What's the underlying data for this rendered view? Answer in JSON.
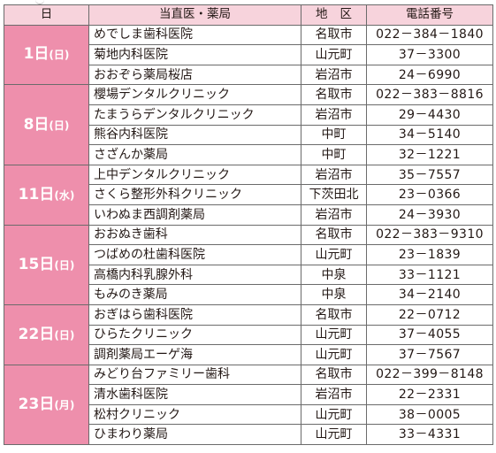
{
  "header": {
    "date": "日",
    "facility": "当直医・薬局",
    "area": "地区",
    "phone": "電話番号"
  },
  "groups": [
    {
      "day": "1日",
      "weekday": "(日)",
      "rows": [
        {
          "name": "めでしま歯科医院",
          "area": "名取市",
          "phone": "022－384－1840"
        },
        {
          "name": "菊地内科医院",
          "area": "山元町",
          "phone": "37－3300"
        },
        {
          "name": "おおぞら薬局桜店",
          "area": "岩沼市",
          "phone": "24－6990"
        }
      ]
    },
    {
      "day": "8日",
      "weekday": "(日)",
      "rows": [
        {
          "name": "櫻場デンタルクリニック",
          "area": "名取市",
          "phone": "022－383－8816"
        },
        {
          "name": "たまうらデンタルクリニック",
          "area": "岩沼市",
          "phone": "29－4430"
        },
        {
          "name": "熊谷内科医院",
          "area": "中町",
          "phone": "34－5140"
        },
        {
          "name": "さざんか薬局",
          "area": "中町",
          "phone": "32－1221"
        }
      ]
    },
    {
      "day": "11日",
      "weekday": "(水)",
      "rows": [
        {
          "name": "上中デンタルクリニック",
          "area": "岩沼市",
          "phone": "35－7557"
        },
        {
          "name": "さくら整形外科クリニック",
          "area": "下茨田北",
          "phone": "23－0366"
        },
        {
          "name": "いわぬま西調剤薬局",
          "area": "岩沼市",
          "phone": "24－3930"
        }
      ]
    },
    {
      "day": "15日",
      "weekday": "(日)",
      "rows": [
        {
          "name": "おおぬき歯科",
          "area": "名取市",
          "phone": "022－383－9310"
        },
        {
          "name": "つばめの杜歯科医院",
          "area": "山元町",
          "phone": "23－1839"
        },
        {
          "name": "高橋内科乳腺外科",
          "area": "中泉",
          "phone": "33－1121"
        },
        {
          "name": "もみのき薬局",
          "area": "中泉",
          "phone": "34－2140"
        }
      ]
    },
    {
      "day": "22日",
      "weekday": "(日)",
      "rows": [
        {
          "name": "おぎはら歯科医院",
          "area": "名取市",
          "phone": "22－0712"
        },
        {
          "name": "ひらたクリニック",
          "area": "山元町",
          "phone": "37－4055"
        },
        {
          "name": "調剤薬局エーゲ海",
          "area": "山元町",
          "phone": "37－7567"
        }
      ]
    },
    {
      "day": "23日",
      "weekday": "(月)",
      "rows": [
        {
          "name": "みどり台ファミリー歯科",
          "area": "名取市",
          "phone": "022－399－8148"
        },
        {
          "name": "清水歯科医院",
          "area": "岩沼市",
          "phone": "22－2331"
        },
        {
          "name": "松村クリニック",
          "area": "山元町",
          "phone": "38－0005"
        },
        {
          "name": "ひまわり薬局",
          "area": "山元町",
          "phone": "33－4331"
        }
      ]
    }
  ],
  "colors": {
    "header_bg": "#f7d3dc",
    "date_bg": "#ee8fac",
    "border": "#6b6b6b"
  }
}
